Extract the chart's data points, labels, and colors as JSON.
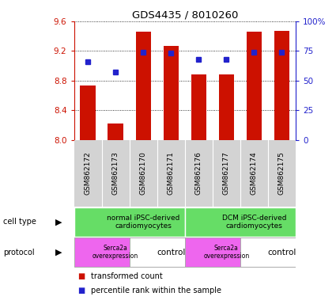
{
  "title": "GDS4435 / 8010260",
  "samples": [
    "GSM862172",
    "GSM862173",
    "GSM862170",
    "GSM862171",
    "GSM862176",
    "GSM862177",
    "GSM862174",
    "GSM862175"
  ],
  "bar_values": [
    8.73,
    8.22,
    9.46,
    9.27,
    8.88,
    8.88,
    9.46,
    9.47
  ],
  "percentile_values": [
    66,
    57,
    74,
    73,
    68,
    68,
    74,
    74
  ],
  "ylim_left": [
    8.0,
    9.6
  ],
  "ylim_right": [
    0,
    100
  ],
  "yticks_left": [
    8.0,
    8.4,
    8.8,
    9.2,
    9.6
  ],
  "yticks_right": [
    0,
    25,
    50,
    75,
    100
  ],
  "bar_color": "#cc1100",
  "dot_color": "#2222cc",
  "tick_color_left": "#cc1100",
  "tick_color_right": "#2222cc",
  "sample_bg_color": "#d3d3d3",
  "cell_type_color": "#66dd66",
  "protocol_serca_color": "#ee66ee",
  "protocol_control_color": "#ffffff",
  "cell_type_groups": [
    {
      "label": "normal iPSC-derived\ncardiomyocytes",
      "start": 0,
      "end": 4
    },
    {
      "label": "DCM iPSC-derived\ncardiomyocytes",
      "start": 4,
      "end": 8
    }
  ],
  "protocol_groups": [
    {
      "label": "Serca2a\noverexpression",
      "start": 0,
      "end": 2,
      "type": "serca"
    },
    {
      "label": "control",
      "start": 2,
      "end": 4,
      "type": "control"
    },
    {
      "label": "Serca2a\noverexpression",
      "start": 4,
      "end": 6,
      "type": "serca"
    },
    {
      "label": "control",
      "start": 6,
      "end": 8,
      "type": "control"
    }
  ],
  "legend_red_label": "transformed count",
  "legend_blue_label": "percentile rank within the sample"
}
